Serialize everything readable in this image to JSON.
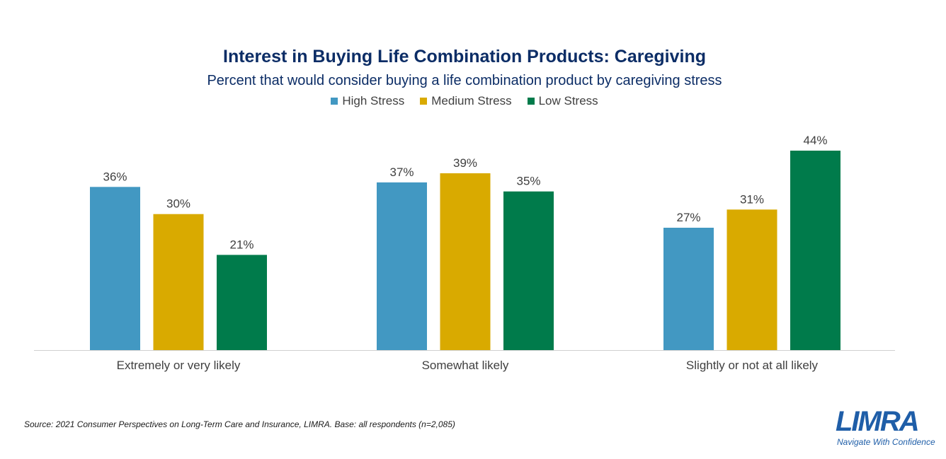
{
  "chart_data": {
    "type": "bar",
    "title": "Interest in Buying Life Combination Products: Caregiving",
    "subtitle": "Percent that would consider buying a life combination product by caregiving stress",
    "categories": [
      "Extremely or very likely",
      "Somewhat likely",
      "Slightly or not at all likely"
    ],
    "series": [
      {
        "name": "High Stress",
        "color": "#4298c2",
        "values": [
          36,
          37,
          27
        ],
        "labels": [
          "36%",
          "37%",
          "27%"
        ]
      },
      {
        "name": "Medium Stress",
        "color": "#d9aa00",
        "values": [
          30,
          39,
          31
        ],
        "labels": [
          "30%",
          "39%",
          "31%"
        ]
      },
      {
        "name": "Low Stress",
        "color": "#007b4b",
        "values": [
          21,
          35,
          44
        ],
        "labels": [
          "21%",
          "35%",
          "44%"
        ]
      }
    ],
    "ylim": [
      0,
      44
    ],
    "value_unit": "%",
    "grid": false,
    "legend_position": "top"
  },
  "source": "Source: 2021 Consumer Perspectives on Long-Term Care and Insurance, LIMRA. Base: all respondents (n=2,085)",
  "logo": {
    "wordmark": "LIMRA",
    "tagline": "Navigate With Confidence"
  }
}
